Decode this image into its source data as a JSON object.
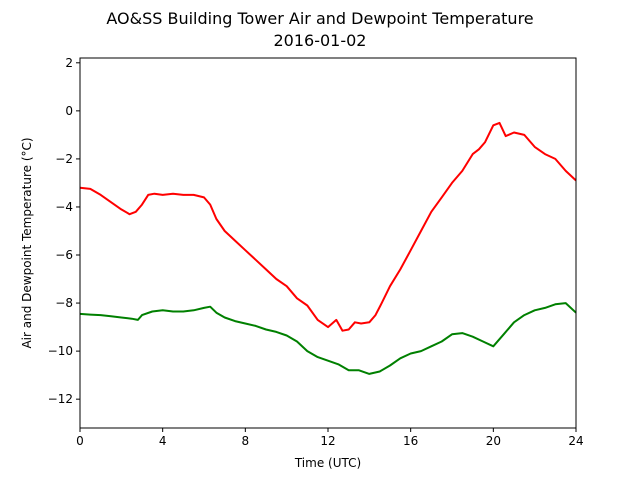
{
  "chart_data": {
    "type": "line",
    "title": "AO&SS Building Tower Air and Dewpoint Temperature",
    "subtitle": "2016-01-02",
    "xlabel": "Time (UTC)",
    "ylabel": "Air and Dewpoint Temperature (°C)",
    "xlim": [
      0,
      24
    ],
    "ylim": [
      -13.2,
      2.2
    ],
    "xticks": [
      0,
      4,
      8,
      12,
      16,
      20,
      24
    ],
    "xtick_labels": [
      "0",
      "4",
      "8",
      "12",
      "16",
      "20",
      "24"
    ],
    "yticks": [
      2,
      0,
      -2,
      -4,
      -6,
      -8,
      -10,
      -12
    ],
    "ytick_labels": [
      "2",
      "0",
      "−2",
      "−4",
      "−6",
      "−8",
      "−10",
      "−12"
    ],
    "grid": false,
    "series": [
      {
        "color": "#ff0000",
        "x": [
          0,
          0.5,
          1.0,
          1.5,
          2.0,
          2.4,
          2.7,
          3.0,
          3.3,
          3.6,
          4.0,
          4.5,
          5.0,
          5.5,
          6.0,
          6.3,
          6.6,
          7.0,
          7.5,
          8.0,
          8.5,
          9.0,
          9.5,
          10.0,
          10.5,
          11.0,
          11.5,
          12.0,
          12.4,
          12.7,
          13.0,
          13.3,
          13.6,
          14.0,
          14.3,
          14.6,
          15.0,
          15.5,
          16.0,
          16.5,
          17.0,
          17.5,
          18.0,
          18.5,
          19.0,
          19.3,
          19.6,
          20.0,
          20.3,
          20.6,
          21.0,
          21.5,
          22.0,
          22.5,
          23.0,
          23.5,
          24.0
        ],
        "y": [
          -3.2,
          -3.25,
          -3.5,
          -3.8,
          -4.1,
          -4.3,
          -4.2,
          -3.9,
          -3.5,
          -3.45,
          -3.5,
          -3.45,
          -3.5,
          -3.5,
          -3.6,
          -3.9,
          -4.5,
          -5.0,
          -5.4,
          -5.8,
          -6.2,
          -6.6,
          -7.0,
          -7.3,
          -7.8,
          -8.1,
          -8.7,
          -9.0,
          -8.7,
          -9.15,
          -9.1,
          -8.8,
          -8.85,
          -8.8,
          -8.5,
          -8.0,
          -7.3,
          -6.6,
          -5.8,
          -5.0,
          -4.2,
          -3.6,
          -3.0,
          -2.5,
          -1.8,
          -1.6,
          -1.3,
          -0.6,
          -0.5,
          -1.05,
          -0.9,
          -1.0,
          -1.5,
          -1.8,
          -2.0,
          -2.5,
          -2.9
        ]
      },
      {
        "color": "#008000",
        "x": [
          0,
          0.5,
          1.0,
          1.5,
          2.0,
          2.5,
          2.8,
          3.0,
          3.5,
          4.0,
          4.5,
          5.0,
          5.5,
          6.0,
          6.3,
          6.6,
          7.0,
          7.5,
          8.0,
          8.5,
          9.0,
          9.5,
          10.0,
          10.5,
          11.0,
          11.5,
          12.0,
          12.5,
          13.0,
          13.5,
          14.0,
          14.5,
          15.0,
          15.5,
          16.0,
          16.5,
          17.0,
          17.5,
          18.0,
          18.5,
          19.0,
          19.5,
          20.0,
          20.5,
          21.0,
          21.5,
          22.0,
          22.5,
          23.0,
          23.5,
          24.0
        ],
        "y": [
          -8.45,
          -8.48,
          -8.5,
          -8.55,
          -8.6,
          -8.65,
          -8.7,
          -8.5,
          -8.35,
          -8.3,
          -8.35,
          -8.35,
          -8.3,
          -8.2,
          -8.15,
          -8.4,
          -8.6,
          -8.75,
          -8.85,
          -8.95,
          -9.1,
          -9.2,
          -9.35,
          -9.6,
          -10.0,
          -10.25,
          -10.4,
          -10.55,
          -10.8,
          -10.8,
          -10.95,
          -10.85,
          -10.6,
          -10.3,
          -10.1,
          -10.0,
          -9.8,
          -9.6,
          -9.3,
          -9.25,
          -9.4,
          -9.6,
          -9.8,
          -9.3,
          -8.8,
          -8.5,
          -8.3,
          -8.2,
          -8.05,
          -8.0,
          -8.4
        ]
      }
    ]
  }
}
